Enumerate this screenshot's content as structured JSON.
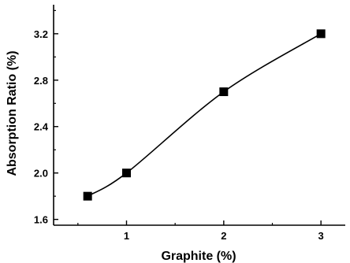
{
  "chart_data": {
    "type": "line",
    "title": "",
    "xlabel": "Graphite (%)",
    "ylabel": "Absorption Ratio (%)",
    "xlim": [
      0.25,
      3.25
    ],
    "ylim": [
      1.55,
      3.45
    ],
    "xticks": [
      1,
      2,
      3
    ],
    "xtick_labels": [
      "1",
      "2",
      "3"
    ],
    "yticks": [
      1.6,
      2.0,
      2.4,
      2.8,
      3.2
    ],
    "ytick_labels": [
      "1.6",
      "2.0",
      "2.4",
      "2.8",
      "3.2"
    ],
    "grid": false,
    "legend": "none",
    "series": [
      {
        "marker": "square",
        "line": "smooth",
        "color": "#000000",
        "points": [
          {
            "x": 0.6,
            "y": 1.8
          },
          {
            "x": 1.0,
            "y": 2.0
          },
          {
            "x": 2.0,
            "y": 2.7
          },
          {
            "x": 3.0,
            "y": 3.2
          }
        ]
      }
    ]
  }
}
